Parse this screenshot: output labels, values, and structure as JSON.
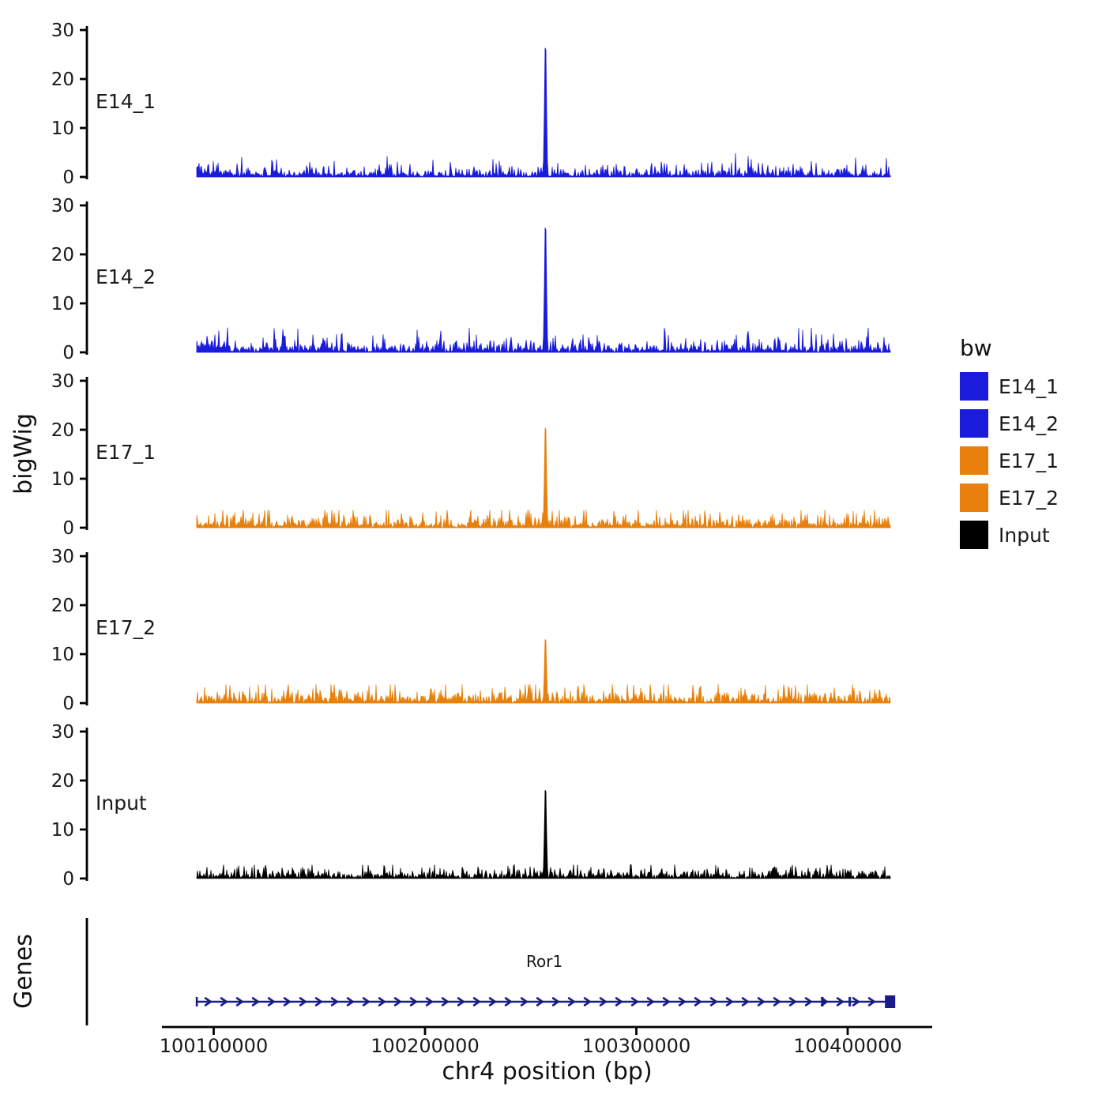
{
  "figure": {
    "y_axis_label": "bigWig",
    "genes_axis_label": "Genes",
    "x_axis_label": "chr4 position (bp)",
    "legend": {
      "title": "bw",
      "entries": [
        {
          "label": "E14_1",
          "color": "#1b1bdc"
        },
        {
          "label": "E14_2",
          "color": "#1b1bdc"
        },
        {
          "label": "E17_1",
          "color": "#e8800e"
        },
        {
          "label": "E17_2",
          "color": "#e8800e"
        },
        {
          "label": "Input",
          "color": "#000000"
        }
      ]
    }
  },
  "chart_data": {
    "type": "area",
    "subtype": "genome-coverage-tracks",
    "x_domain": [
      100040000,
      100440000
    ],
    "x_ticks": [
      100100000,
      100200000,
      100300000,
      100400000
    ],
    "y_domain": [
      0,
      30
    ],
    "y_ticks": [
      0,
      10,
      20,
      30
    ],
    "data_start": 100092000,
    "data_end": 100420000,
    "peak_position": 100257000,
    "grid": "off",
    "legend_position": "right",
    "tracks": [
      {
        "name": "E14_1",
        "color": "#1b1bdc",
        "peak_value": 28.5,
        "baseline_mean": 0.85,
        "baseline_max": 4.8,
        "start_bump": true,
        "seed": 101
      },
      {
        "name": "E14_2",
        "color": "#1b1bdc",
        "peak_value": 27.5,
        "baseline_mean": 0.95,
        "baseline_max": 5.0,
        "start_bump": true,
        "seed": 202
      },
      {
        "name": "E17_1",
        "color": "#e8800e",
        "peak_value": 22.0,
        "baseline_mean": 0.95,
        "baseline_max": 3.6,
        "start_bump": false,
        "seed": 303
      },
      {
        "name": "E17_2",
        "color": "#e8800e",
        "peak_value": 14.0,
        "baseline_mean": 1.0,
        "baseline_max": 3.8,
        "start_bump": false,
        "seed": 404
      },
      {
        "name": "Input",
        "color": "#000000",
        "peak_value": 19.5,
        "baseline_mean": 0.75,
        "baseline_max": 2.8,
        "start_bump": false,
        "seed": 505
      }
    ],
    "gene_track": {
      "gene_name": "Ror1",
      "gene_start": 100092000,
      "gene_end": 100421000,
      "strand": "+",
      "exon_marks": [
        100388000,
        100401000
      ],
      "color": "#1a1a8c"
    }
  }
}
